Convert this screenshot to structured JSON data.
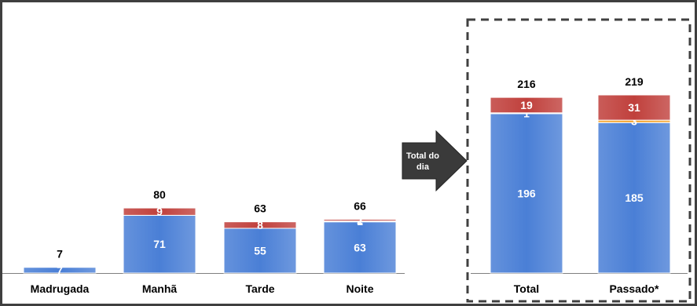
{
  "chart_data": {
    "type": "bar",
    "stacked": true,
    "categories": [
      "Madrugada",
      "Manhã",
      "Tarde",
      "Noite",
      "Total",
      "Passado*"
    ],
    "series": [
      {
        "color": "#4a7fd6",
        "values": [
          7,
          71,
          55,
          63,
          196,
          185
        ]
      },
      {
        "color": "#f5a020",
        "values": [
          0,
          0,
          0,
          1,
          1,
          3
        ]
      },
      {
        "color": "#c0403c",
        "values": [
          0,
          9,
          8,
          2,
          19,
          31
        ]
      }
    ],
    "segment_labels": [
      [
        "7",
        "71",
        "55",
        "63",
        "196",
        "185"
      ],
      [
        "",
        "",
        "",
        "1",
        "1",
        "3"
      ],
      [
        "",
        "9",
        "8",
        "2",
        "19",
        "31"
      ]
    ],
    "totals": [
      "7",
      "80",
      "63",
      "66",
      "216",
      "219"
    ],
    "legend": "none",
    "grid": false
  },
  "arrow": {
    "label_line1": "Total do",
    "label_line2": "dia",
    "color": "#3a3a3a"
  },
  "colors": {
    "frame": "#3f3f3f",
    "dashed_box": "#404040",
    "baseline": "#7f7f7f"
  }
}
